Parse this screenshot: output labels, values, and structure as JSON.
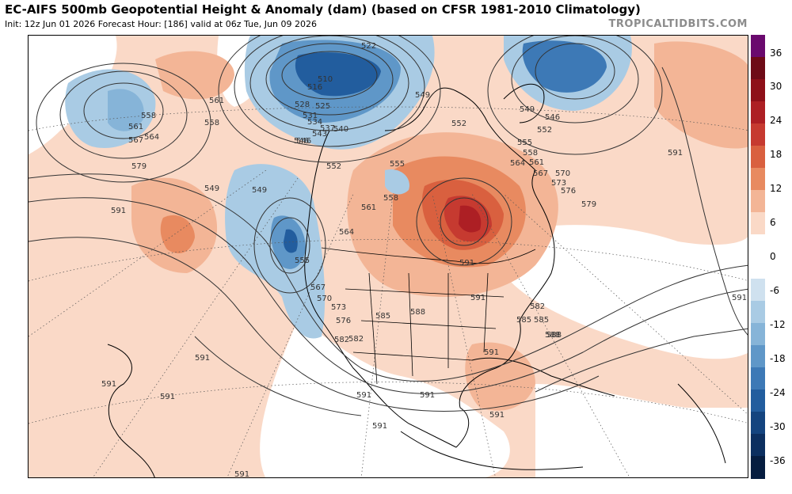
{
  "header": {
    "title": "EC-AIFS 500mb Geopotential Height & Anomaly (dam) (based on CFSR 1981-2010 Climatology)",
    "subtitle": "Init: 12z Jun 01 2026   Forecast Hour: [186]   valid at 06z Tue, Jun 09 2026",
    "brand": "TROPICALTIDBITS.COM"
  },
  "colorbar": {
    "ticks": [
      "36",
      "30",
      "24",
      "18",
      "12",
      "6",
      "0",
      "-6",
      "-12",
      "-18",
      "-24",
      "-30",
      "-36"
    ],
    "colors": [
      "#6a0a6e",
      "#6e0b17",
      "#8e1019",
      "#ad1f24",
      "#c63a30",
      "#d9603f",
      "#e88a60",
      "#f3b596",
      "#fad9c7",
      "#ffffff",
      "#ffffff",
      "#cfe1ef",
      "#a9cbe4",
      "#86b4d8",
      "#5f97c8",
      "#3d79b6",
      "#225d9e",
      "#14447f",
      "#0c2f60",
      "#061d40"
    ]
  },
  "contour_labels": [
    "510",
    "516",
    "522",
    "528",
    "525",
    "531",
    "534",
    "537",
    "540",
    "543",
    "546",
    "549",
    "552",
    "555",
    "558",
    "561",
    "564",
    "567",
    "570",
    "573",
    "576",
    "579",
    "582",
    "585",
    "588",
    "591"
  ],
  "map_labels": [
    {
      "text": "510"
    },
    {
      "text": "516"
    },
    {
      "text": "522"
    },
    {
      "text": "528"
    },
    {
      "text": "525"
    },
    {
      "text": "531"
    },
    {
      "text": "534"
    },
    {
      "text": "537"
    },
    {
      "text": "540"
    },
    {
      "text": "543"
    },
    {
      "text": "546"
    },
    {
      "text": "549"
    },
    {
      "text": "552"
    },
    {
      "text": "549"
    },
    {
      "text": "549"
    },
    {
      "text": "546"
    },
    {
      "text": "552"
    },
    {
      "text": "555"
    },
    {
      "text": "558"
    },
    {
      "text": "561"
    },
    {
      "text": "564"
    },
    {
      "text": "567"
    },
    {
      "text": "570"
    },
    {
      "text": "573"
    },
    {
      "text": "576"
    },
    {
      "text": "579"
    },
    {
      "text": "582"
    },
    {
      "text": "585"
    },
    {
      "text": "588"
    },
    {
      "text": "591"
    },
    {
      "text": "591"
    },
    {
      "text": "591"
    },
    {
      "text": "585"
    },
    {
      "text": "588"
    },
    {
      "text": "582"
    },
    {
      "text": "576"
    },
    {
      "text": "573"
    },
    {
      "text": "570"
    },
    {
      "text": "567"
    },
    {
      "text": "555"
    },
    {
      "text": "564"
    },
    {
      "text": "561"
    },
    {
      "text": "558"
    },
    {
      "text": "555"
    },
    {
      "text": "552"
    },
    {
      "text": "549"
    },
    {
      "text": "546"
    },
    {
      "text": "561"
    },
    {
      "text": "558"
    },
    {
      "text": "561"
    },
    {
      "text": "567"
    },
    {
      "text": "564"
    },
    {
      "text": "558"
    },
    {
      "text": "579"
    },
    {
      "text": "591"
    },
    {
      "text": "591"
    },
    {
      "text": "591"
    },
    {
      "text": "591"
    },
    {
      "text": "591"
    },
    {
      "text": "591"
    },
    {
      "text": "591"
    },
    {
      "text": "591"
    },
    {
      "text": "591"
    },
    {
      "text": "582"
    },
    {
      "text": "585"
    },
    {
      "text": "588"
    },
    {
      "text": "591"
    },
    {
      "text": "591"
    }
  ]
}
